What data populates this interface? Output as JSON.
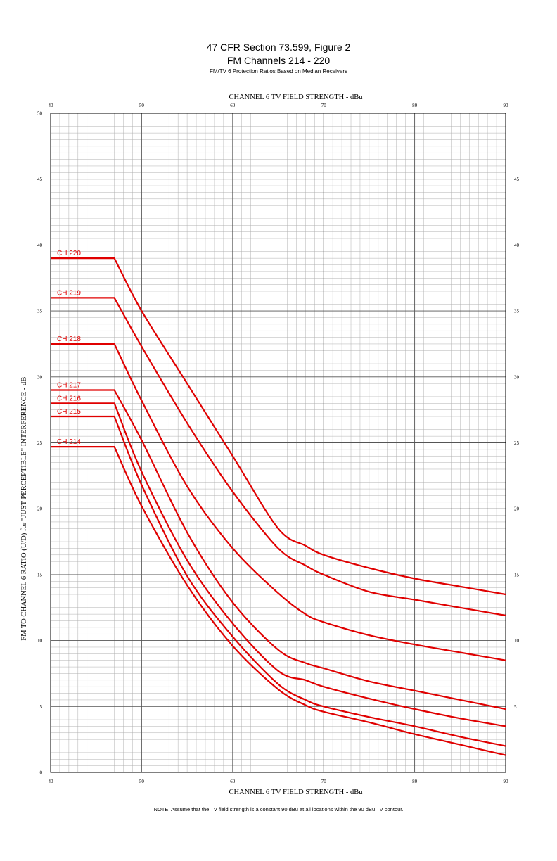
{
  "header": {
    "title": "47 CFR Section 73.599, Figure 2",
    "subtitle": "FM Channels 214 - 220",
    "caption": "FM/TV 6 Protection Ratios Based on Median Receivers"
  },
  "note": "NOTE: Assume that the TV field strength is a constant 90 dBu at all locations within the 90 dBu TV contour.",
  "colors": {
    "curve": "#e00000",
    "major_grid": "#555555",
    "minor_grid": "#b0b0b0",
    "axis": "#000000"
  },
  "chart_data": {
    "type": "line",
    "title": "47 CFR Section 73.599, Figure 2",
    "xlabel_top": "CHANNEL 6 TV FIELD STRENGTH - dBu",
    "xlabel_bottom": "CHANNEL 6 TV FIELD STRENGTH - dBu",
    "ylabel": "FM TO CHANNEL 6 RATIO (U/D) for \"JUST PERCEPTIBLE\" INTERFERENCE - dB",
    "xlim": [
      40,
      90
    ],
    "ylim": [
      0,
      50
    ],
    "x_ticks": [
      "40",
      "50",
      "60",
      "70",
      "80",
      "90"
    ],
    "y_ticks": [
      "0",
      "5",
      "10",
      "15",
      "20",
      "25",
      "30",
      "35",
      "40",
      "45",
      "50"
    ],
    "grid": true,
    "series": [
      {
        "name": "CH 220",
        "x": [
          40,
          47,
          50,
          55,
          60,
          65,
          68,
          70,
          75,
          80,
          85,
          90
        ],
        "values": [
          39,
          39,
          35,
          29.5,
          24,
          18.5,
          17.2,
          16.5,
          15.5,
          14.7,
          14.1,
          13.5
        ]
      },
      {
        "name": "CH 219",
        "x": [
          40,
          47,
          50,
          55,
          60,
          65,
          68,
          70,
          75,
          80,
          85,
          90
        ],
        "values": [
          36,
          36,
          32.3,
          26.5,
          21.3,
          17,
          15.7,
          15,
          13.7,
          13.1,
          12.5,
          11.9
        ]
      },
      {
        "name": "CH 218",
        "x": [
          40,
          47,
          50,
          55,
          60,
          65,
          68,
          70,
          75,
          80,
          85,
          90
        ],
        "values": [
          32.5,
          32.5,
          28.2,
          21.7,
          17,
          13.6,
          12,
          11.4,
          10.4,
          9.7,
          9.1,
          8.5
        ]
      },
      {
        "name": "CH 217",
        "x": [
          40,
          47,
          50,
          55,
          60,
          65,
          68,
          70,
          75,
          80,
          85,
          90
        ],
        "values": [
          29,
          29,
          25.2,
          18.2,
          12.9,
          9.3,
          8.3,
          7.9,
          6.9,
          6.2,
          5.5,
          4.8
        ]
      },
      {
        "name": "CH 216",
        "x": [
          40,
          47,
          50,
          55,
          60,
          65,
          68,
          70,
          75,
          80,
          85,
          90
        ],
        "values": [
          28,
          28,
          22.8,
          16.1,
          11.3,
          7.7,
          7,
          6.5,
          5.6,
          4.8,
          4.1,
          3.5
        ]
      },
      {
        "name": "CH 215",
        "x": [
          40,
          47,
          50,
          55,
          60,
          65,
          68,
          70,
          75,
          80,
          85,
          90
        ],
        "values": [
          27,
          27,
          21.8,
          14.9,
          10.3,
          6.7,
          5.5,
          5,
          4.2,
          3.5,
          2.7,
          2
        ]
      },
      {
        "name": "CH 214",
        "x": [
          40,
          47,
          50,
          55,
          60,
          65,
          68,
          70,
          75,
          80,
          85,
          90
        ],
        "values": [
          24.7,
          24.7,
          20.2,
          14.2,
          9.6,
          6.3,
          5.1,
          4.6,
          3.8,
          2.9,
          2.1,
          1.3
        ]
      }
    ]
  }
}
